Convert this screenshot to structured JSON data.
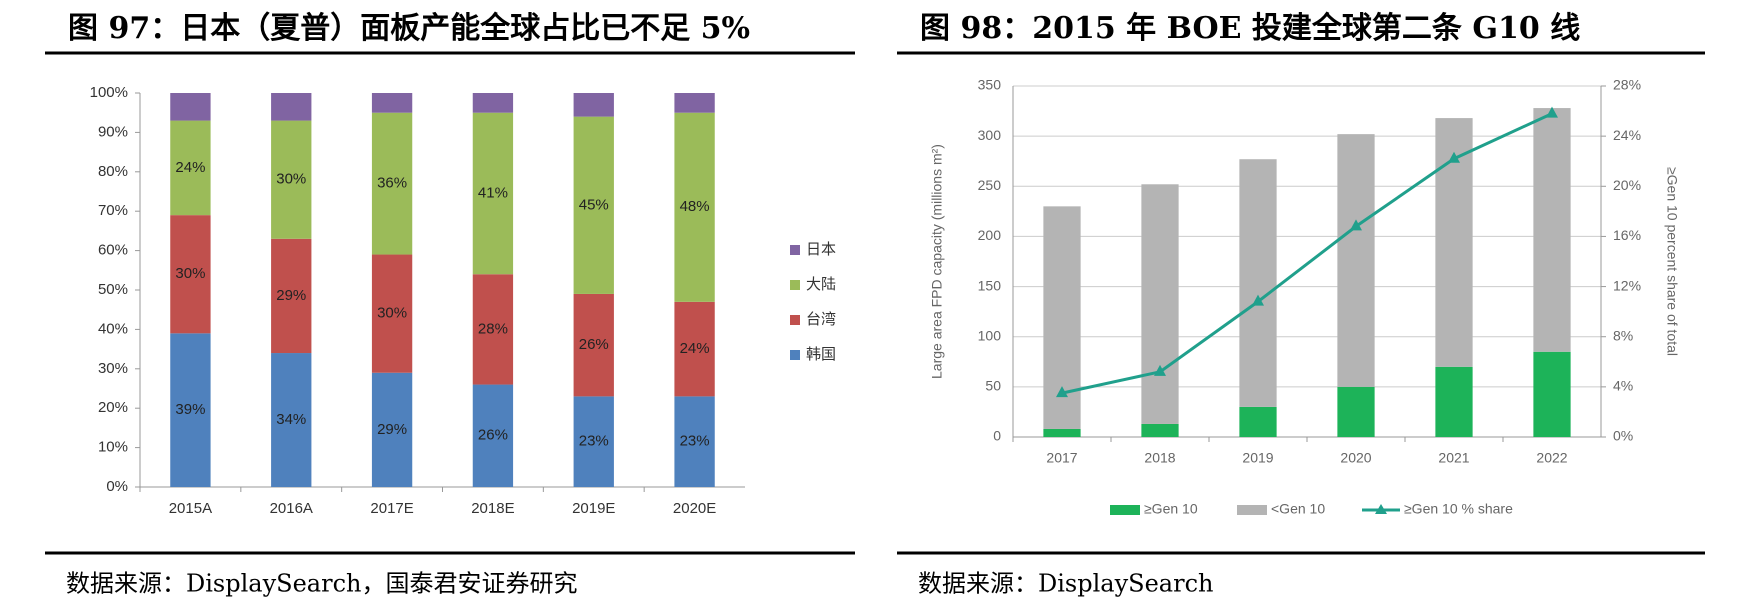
{
  "panels": [
    {
      "title": "图 97：日本（夏普）面板产能全球占比已不足 5%",
      "source": "数据来源：DisplaySearch，国泰君安证券研究"
    },
    {
      "title": "图 98：2015 年 BOE 投建全球第二条 G10 线",
      "source": "数据来源：DisplaySearch"
    }
  ],
  "chart_data": [
    {
      "type": "bar",
      "stacked": true,
      "legend": "right",
      "categories": [
        "2015A",
        "2016A",
        "2017E",
        "2018E",
        "2019E",
        "2020E"
      ],
      "series": [
        {
          "name": "韩国",
          "color": "#4f81bd",
          "values": [
            39,
            34,
            29,
            26,
            23,
            23
          ],
          "value_labels": [
            "39%",
            "34%",
            "29%",
            "26%",
            "23%",
            "23%"
          ]
        },
        {
          "name": "台湾",
          "color": "#c0504d",
          "values": [
            30,
            29,
            30,
            28,
            26,
            24
          ],
          "value_labels": [
            "30%",
            "29%",
            "30%",
            "28%",
            "26%",
            "24%"
          ]
        },
        {
          "name": "大陆",
          "color": "#9bbb59",
          "values": [
            24,
            30,
            36,
            41,
            45,
            48
          ],
          "value_labels": [
            "24%",
            "30%",
            "36%",
            "41%",
            "45%",
            "48%"
          ]
        },
        {
          "name": "日本",
          "color": "#8064a2",
          "values": [
            7,
            7,
            5,
            5,
            6,
            5
          ]
        }
      ],
      "ylim": [
        0,
        100
      ],
      "yticks": [
        {
          "value": 0,
          "label": "0%"
        },
        {
          "value": 10,
          "label": "10%"
        },
        {
          "value": 20,
          "label": "20%"
        },
        {
          "value": 30,
          "label": "30%"
        },
        {
          "value": 40,
          "label": "40%"
        },
        {
          "value": 50,
          "label": "50%"
        },
        {
          "value": 60,
          "label": "60%"
        },
        {
          "value": 70,
          "label": "70%"
        },
        {
          "value": 80,
          "label": "80%"
        },
        {
          "value": 90,
          "label": "90%"
        },
        {
          "value": 100,
          "label": "100%"
        }
      ],
      "grid": false
    },
    {
      "type": "bar",
      "stacked": true,
      "legend": "bottom",
      "ylabel": "Large area FPD capacity (millions m²)",
      "y2label": "≥Gen 10 percent share of total",
      "categories": [
        "2017",
        "2018",
        "2019",
        "2020",
        "2021",
        "2022"
      ],
      "series": [
        {
          "name": "≥Gen 10",
          "color": "#1db359",
          "values": [
            8,
            13,
            30,
            50,
            70,
            85
          ]
        },
        {
          "name": "<Gen 10",
          "color": "#b4b4b4",
          "values": [
            222,
            239,
            247,
            252,
            248,
            243
          ]
        },
        {
          "name": "≥Gen 10 % share",
          "type": "line",
          "axis": "y2",
          "color": "#20a08c",
          "values": [
            3.5,
            5.2,
            10.8,
            16.8,
            22.2,
            25.8
          ]
        }
      ],
      "ylim": [
        0,
        350
      ],
      "yticks": [
        0,
        50,
        100,
        150,
        200,
        250,
        300,
        350
      ],
      "y2lim": [
        0,
        28
      ],
      "y2ticks": [
        {
          "value": 0,
          "label": "0%"
        },
        {
          "value": 4,
          "label": "4%"
        },
        {
          "value": 8,
          "label": "8%"
        },
        {
          "value": 12,
          "label": "12%"
        },
        {
          "value": 16,
          "label": "16%"
        },
        {
          "value": 20,
          "label": "20%"
        },
        {
          "value": 24,
          "label": "24%"
        },
        {
          "value": 28,
          "label": "28%"
        }
      ],
      "grid": true
    }
  ]
}
